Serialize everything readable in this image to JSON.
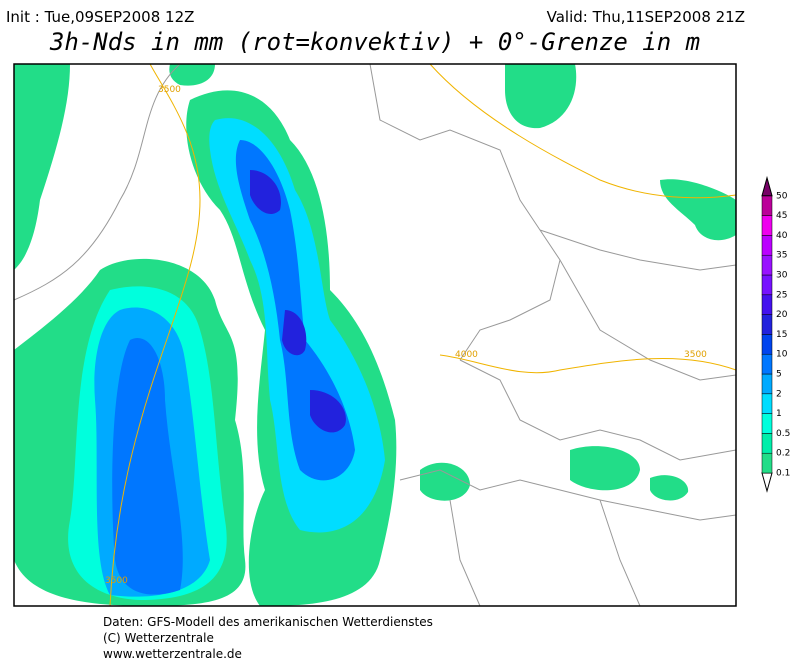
{
  "header": {
    "init": "Init : Tue,09SEP2008 12Z",
    "valid": "Valid: Thu,11SEP2008 21Z",
    "title": "3h-Nds in mm (rot=konvektiv) + 0°-Grenze in m"
  },
  "legend": {
    "levels": [
      {
        "label": "0.1",
        "color": "#22dd88"
      },
      {
        "label": "0.2",
        "color": "#00eeaa"
      },
      {
        "label": "0.5",
        "color": "#00ffdd"
      },
      {
        "label": "1",
        "color": "#00ddff"
      },
      {
        "label": "2",
        "color": "#00aaff"
      },
      {
        "label": "5",
        "color": "#0077ff"
      },
      {
        "label": "10",
        "color": "#0044ee"
      },
      {
        "label": "15",
        "color": "#2222dd"
      },
      {
        "label": "20",
        "color": "#4411ee"
      },
      {
        "label": "25",
        "color": "#7711ff"
      },
      {
        "label": "30",
        "color": "#9911ff"
      },
      {
        "label": "35",
        "color": "#bb00ff"
      },
      {
        "label": "40",
        "color": "#ee00ee"
      },
      {
        "label": "45",
        "color": "#bb0099"
      },
      {
        "label": "50",
        "color": "#770066"
      }
    ]
  },
  "map": {
    "contour_labels": [
      "3500",
      "4000",
      "3500",
      "3500"
    ]
  },
  "footer": {
    "lines": [
      "Daten: GFS-Modell des amerikanischen Wetterdienstes",
      "(C) Wetterzentrale",
      "www.wetterzentrale.de"
    ]
  }
}
